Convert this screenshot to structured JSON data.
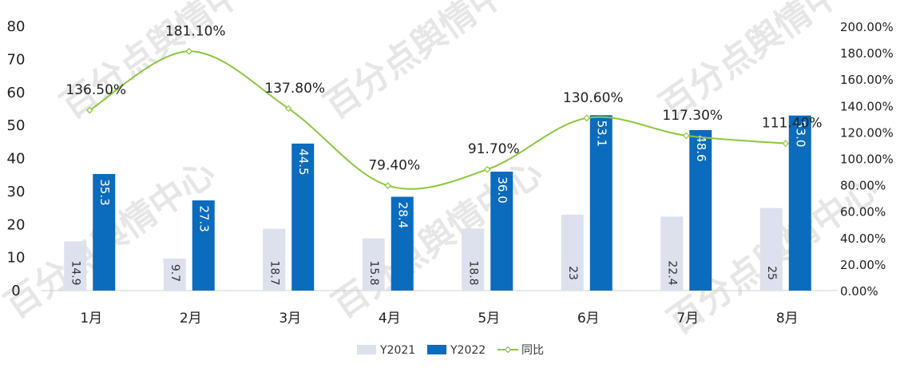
{
  "watermark": "百分点舆情中心",
  "chart_data": {
    "type": "bar",
    "categories": [
      "1月",
      "2月",
      "3月",
      "4月",
      "5月",
      "6月",
      "7月",
      "8月"
    ],
    "series": [
      {
        "name": "Y2021",
        "kind": "bar",
        "color": "#dde0ed",
        "values": [
          14.9,
          9.7,
          18.7,
          15.8,
          18.8,
          23,
          22.4,
          25
        ],
        "labels": [
          "14.9",
          "9.7",
          "18.7",
          "15.8",
          "18.8",
          "23",
          "22.4",
          "25"
        ]
      },
      {
        "name": "Y2022",
        "kind": "bar",
        "color": "#0b6bbd",
        "values": [
          35.3,
          27.3,
          44.5,
          28.4,
          36.0,
          53.1,
          48.6,
          53.0
        ],
        "labels": [
          "35.3",
          "27.3",
          "44.5",
          "28.4",
          "36.0",
          "53.1",
          "48.6",
          "53.0"
        ]
      },
      {
        "name": "同比",
        "kind": "line",
        "axis": "right",
        "color": "#8cc63f",
        "values": [
          136.5,
          181.1,
          137.8,
          79.4,
          91.7,
          130.6,
          117.3,
          111.4
        ],
        "labels": [
          "136.50%",
          "181.10%",
          "137.80%",
          "79.40%",
          "91.70%",
          "130.60%",
          "117.30%",
          "111.40%"
        ]
      }
    ],
    "y_left": {
      "ylim": [
        0,
        80
      ],
      "ticks": [
        "0",
        "10",
        "20",
        "30",
        "40",
        "50",
        "60",
        "70",
        "80"
      ]
    },
    "y_right": {
      "ylim": [
        0,
        200
      ],
      "ticks": [
        "0.00%",
        "20.00%",
        "40.00%",
        "60.00%",
        "80.00%",
        "100.00%",
        "120.00%",
        "140.00%",
        "160.00%",
        "180.00%",
        "200.00%"
      ]
    },
    "legend": {
      "position": "bottom",
      "items": [
        "Y2021",
        "Y2022",
        "同比"
      ]
    },
    "grid": false
  }
}
